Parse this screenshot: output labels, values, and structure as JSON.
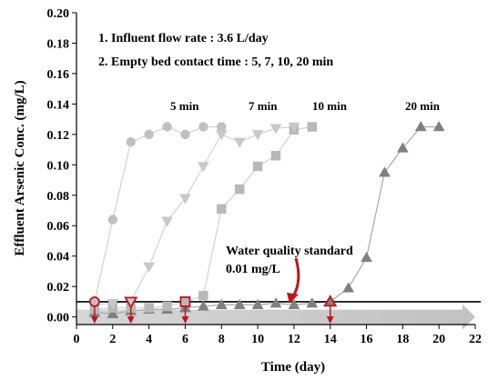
{
  "chart_data": {
    "type": "scatter",
    "xlabel": "Time (day)",
    "ylabel": "Effluent Arsenic Conc.  (mg/L)",
    "xlim": [
      0,
      22
    ],
    "ylim": [
      -0.005,
      0.2
    ],
    "xticks": [
      0,
      2,
      4,
      6,
      8,
      10,
      12,
      14,
      16,
      18,
      20,
      22
    ],
    "yticks": [
      0.0,
      0.02,
      0.04,
      0.06,
      0.08,
      0.1,
      0.12,
      0.14,
      0.16,
      0.18,
      0.2
    ],
    "xtick_labels": [
      "0",
      "2",
      "4",
      "6",
      "8",
      "10",
      "12",
      "14",
      "16",
      "18",
      "20",
      "22"
    ],
    "ytick_labels": [
      "0.00",
      "0.02",
      "0.04",
      "0.06",
      "0.08",
      "0.10",
      "0.12",
      "0.14",
      "0.16",
      "0.18",
      "0.20"
    ],
    "grid": false,
    "annotations": [
      "1. Influent flow rate : 3.6 L/day",
      "2. Empty bed contact time : 5, 7, 10, 20 min"
    ],
    "standard": {
      "value": 0.01,
      "label_line1": "Water quality standard",
      "label_line2": "0.01 mg/L"
    },
    "series": [
      {
        "name": "5 min",
        "marker": "circle",
        "color": "#c0c0c0",
        "breakthrough_day": 1,
        "x": [
          1,
          2,
          3,
          4,
          5,
          6,
          7,
          8
        ],
        "y": [
          0.01,
          0.064,
          0.115,
          0.12,
          0.125,
          0.12,
          0.125,
          0.125
        ]
      },
      {
        "name": "7 min",
        "marker": "triangle-down",
        "color": "#c8c8c8",
        "breakthrough_day": 3,
        "x": [
          1,
          2,
          3,
          4,
          5,
          6,
          7,
          8,
          9,
          10,
          11,
          12
        ],
        "y": [
          0.008,
          0.009,
          0.01,
          0.033,
          0.063,
          0.078,
          0.099,
          0.12,
          0.115,
          0.12,
          0.124,
          0.125
        ]
      },
      {
        "name": "10 min",
        "marker": "square",
        "color": "#b8b8b8",
        "breakthrough_day": 6,
        "x": [
          1,
          2,
          3,
          4,
          5,
          6,
          7,
          8,
          9,
          10,
          11,
          12,
          13
        ],
        "y": [
          0.005,
          0.006,
          0.006,
          0.006,
          0.007,
          0.01,
          0.014,
          0.071,
          0.084,
          0.099,
          0.106,
          0.123,
          0.125
        ]
      },
      {
        "name": "20 min",
        "marker": "triangle-up",
        "color": "#808080",
        "breakthrough_day": 14,
        "x": [
          1,
          2,
          3,
          4,
          5,
          6,
          7,
          8,
          9,
          10,
          11,
          12,
          13,
          14,
          15,
          16,
          17,
          18,
          19,
          20
        ],
        "y": [
          0.003,
          0.002,
          0.004,
          0.005,
          0.005,
          0.006,
          0.007,
          0.008,
          0.008,
          0.008,
          0.009,
          0.008,
          0.009,
          0.01,
          0.019,
          0.039,
          0.095,
          0.111,
          0.125,
          0.125
        ]
      }
    ]
  }
}
